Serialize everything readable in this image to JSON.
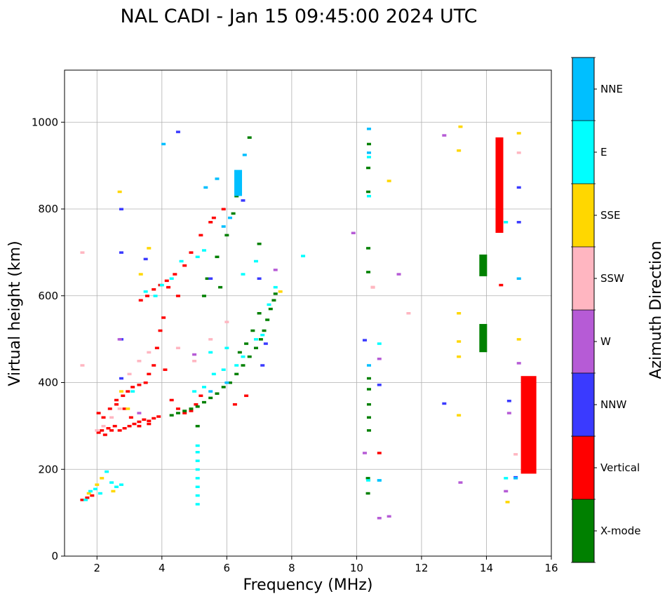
{
  "chart_data": {
    "type": "scatter",
    "title": "NAL CADI - Jan 15 09:45:00 2024 UTC",
    "xlabel": "Frequency (MHz)",
    "ylabel": "Virtual height (km)",
    "xlim": [
      1,
      16
    ],
    "ylim": [
      0,
      1120
    ],
    "xticks": [
      2,
      4,
      6,
      8,
      10,
      12,
      14,
      16
    ],
    "yticks": [
      0,
      200,
      400,
      600,
      800,
      1000
    ],
    "grid": true,
    "colorbar": {
      "title": "Azimuth Direction",
      "categories": [
        {
          "label": "X-mode",
          "color": "#008000"
        },
        {
          "label": "Vertical",
          "color": "#ff0000"
        },
        {
          "label": "NNW",
          "color": "#3a3aff"
        },
        {
          "label": "W",
          "color": "#b65bd6"
        },
        {
          "label": "SSW",
          "color": "#ffb6c1"
        },
        {
          "label": "SSE",
          "color": "#ffd700"
        },
        {
          "label": "E",
          "color": "#00ffff"
        },
        {
          "label": "NNE",
          "color": "#00bfff"
        }
      ]
    },
    "series": [
      {
        "name": "Vertical",
        "points": [
          [
            1.55,
            130
          ],
          [
            1.7,
            135
          ],
          [
            1.85,
            140
          ],
          [
            2.05,
            285
          ],
          [
            2.15,
            290
          ],
          [
            2.25,
            280
          ],
          [
            2.35,
            295
          ],
          [
            2.45,
            290
          ],
          [
            2.55,
            300
          ],
          [
            2.7,
            290
          ],
          [
            2.85,
            295
          ],
          [
            3.0,
            300
          ],
          [
            3.15,
            305
          ],
          [
            3.3,
            310
          ],
          [
            3.45,
            315
          ],
          [
            3.6,
            312
          ],
          [
            3.75,
            318
          ],
          [
            3.9,
            322
          ],
          [
            2.05,
            330
          ],
          [
            2.2,
            320
          ],
          [
            2.4,
            340
          ],
          [
            2.6,
            360
          ],
          [
            2.8,
            370
          ],
          [
            2.95,
            380
          ],
          [
            3.1,
            390
          ],
          [
            3.3,
            395
          ],
          [
            3.5,
            400
          ],
          [
            3.6,
            420
          ],
          [
            3.75,
            440
          ],
          [
            3.85,
            480
          ],
          [
            3.95,
            520
          ],
          [
            4.05,
            550
          ],
          [
            4.1,
            430
          ],
          [
            4.3,
            360
          ],
          [
            4.5,
            340
          ],
          [
            4.7,
            330
          ],
          [
            4.9,
            335
          ],
          [
            5.05,
            350
          ],
          [
            5.2,
            370
          ],
          [
            3.35,
            590
          ],
          [
            3.55,
            600
          ],
          [
            3.75,
            615
          ],
          [
            3.95,
            625
          ],
          [
            4.15,
            635
          ],
          [
            4.4,
            650
          ],
          [
            4.7,
            670
          ],
          [
            4.9,
            700
          ],
          [
            5.2,
            740
          ],
          [
            5.6,
            780
          ],
          [
            5.9,
            800
          ],
          [
            6.25,
            350
          ],
          [
            6.6,
            370
          ],
          [
            2.6,
            350
          ],
          [
            2.85,
            340
          ],
          [
            3.05,
            320
          ],
          [
            3.3,
            300
          ],
          [
            3.6,
            305
          ],
          [
            4.2,
            620
          ],
          [
            4.5,
            600
          ],
          [
            5.5,
            770
          ],
          [
            10.7,
            238
          ],
          [
            10.5,
            620
          ],
          [
            14.45,
            625
          ]
        ]
      },
      {
        "name": "X-mode",
        "points": [
          [
            4.3,
            325
          ],
          [
            4.5,
            330
          ],
          [
            4.7,
            335
          ],
          [
            4.9,
            340
          ],
          [
            5.1,
            345
          ],
          [
            5.3,
            355
          ],
          [
            5.5,
            365
          ],
          [
            5.7,
            375
          ],
          [
            5.9,
            390
          ],
          [
            6.1,
            400
          ],
          [
            6.3,
            420
          ],
          [
            6.5,
            440
          ],
          [
            6.7,
            460
          ],
          [
            6.9,
            480
          ],
          [
            7.05,
            500
          ],
          [
            7.15,
            520
          ],
          [
            7.25,
            545
          ],
          [
            7.35,
            570
          ],
          [
            7.45,
            590
          ],
          [
            7.5,
            605
          ],
          [
            6.4,
            470
          ],
          [
            6.6,
            490
          ],
          [
            6.8,
            520
          ],
          [
            7.0,
            560
          ],
          [
            5.1,
            300
          ],
          [
            5.4,
            640
          ],
          [
            5.7,
            690
          ],
          [
            6.0,
            740
          ],
          [
            6.2,
            790
          ],
          [
            6.3,
            830
          ],
          [
            6.7,
            965
          ],
          [
            7.0,
            720
          ],
          [
            5.3,
            600
          ],
          [
            5.8,
            620
          ],
          [
            10.35,
            145
          ],
          [
            10.35,
            180
          ],
          [
            10.38,
            290
          ],
          [
            10.38,
            320
          ],
          [
            10.38,
            350
          ],
          [
            10.38,
            385
          ],
          [
            10.38,
            410
          ],
          [
            10.36,
            655
          ],
          [
            10.36,
            710
          ],
          [
            10.36,
            840
          ],
          [
            10.36,
            895
          ],
          [
            10.38,
            950
          ],
          [
            13.9,
            480
          ],
          [
            13.9,
            500
          ],
          [
            13.9,
            520
          ],
          [
            13.9,
            655
          ],
          [
            13.9,
            690
          ]
        ]
      },
      {
        "name": "NNW",
        "points": [
          [
            2.75,
            410
          ],
          [
            2.75,
            500
          ],
          [
            2.75,
            800
          ],
          [
            2.75,
            700
          ],
          [
            3.5,
            685
          ],
          [
            4.5,
            978
          ],
          [
            5.5,
            640
          ],
          [
            6.5,
            820
          ],
          [
            7.0,
            640
          ],
          [
            7.2,
            490
          ],
          [
            7.1,
            440
          ],
          [
            10.25,
            498
          ],
          [
            10.7,
            395
          ],
          [
            12.7,
            352
          ],
          [
            14.7,
            358
          ],
          [
            14.9,
            182
          ],
          [
            15.0,
            770
          ],
          [
            15.0,
            850
          ],
          [
            14.45,
            770
          ]
        ]
      },
      {
        "name": "W",
        "points": [
          [
            2.7,
            500
          ],
          [
            3.3,
            330
          ],
          [
            5.0,
            465
          ],
          [
            7.5,
            660
          ],
          [
            9.9,
            745
          ],
          [
            10.25,
            238
          ],
          [
            10.7,
            88
          ],
          [
            11.0,
            92
          ],
          [
            10.7,
            455
          ],
          [
            11.3,
            650
          ],
          [
            12.7,
            970
          ],
          [
            13.2,
            170
          ],
          [
            14.6,
            150
          ],
          [
            14.7,
            330
          ],
          [
            15.0,
            445
          ]
        ]
      },
      {
        "name": "SSW",
        "points": [
          [
            1.55,
            700
          ],
          [
            1.55,
            440
          ],
          [
            2.0,
            290
          ],
          [
            2.2,
            300
          ],
          [
            2.45,
            320
          ],
          [
            2.7,
            340
          ],
          [
            3.0,
            420
          ],
          [
            3.3,
            450
          ],
          [
            3.6,
            470
          ],
          [
            4.5,
            480
          ],
          [
            5.0,
            450
          ],
          [
            5.5,
            500
          ],
          [
            6.0,
            540
          ],
          [
            11.6,
            560
          ],
          [
            14.9,
            235
          ],
          [
            15.0,
            930
          ],
          [
            15.0,
            640
          ],
          [
            10.5,
            620
          ]
        ]
      },
      {
        "name": "SSE",
        "points": [
          [
            1.75,
            145
          ],
          [
            2.0,
            165
          ],
          [
            2.15,
            180
          ],
          [
            2.5,
            150
          ],
          [
            2.7,
            840
          ],
          [
            2.75,
            380
          ],
          [
            2.95,
            340
          ],
          [
            3.35,
            650
          ],
          [
            3.6,
            710
          ],
          [
            11.0,
            865
          ],
          [
            13.15,
            325
          ],
          [
            13.15,
            460
          ],
          [
            13.15,
            495
          ],
          [
            13.15,
            560
          ],
          [
            13.15,
            935
          ],
          [
            13.2,
            990
          ],
          [
            14.65,
            125
          ],
          [
            15.0,
            500
          ],
          [
            15.0,
            975
          ],
          [
            7.65,
            610
          ]
        ]
      },
      {
        "name": "E",
        "points": [
          [
            1.65,
            130
          ],
          [
            1.8,
            150
          ],
          [
            1.95,
            155
          ],
          [
            2.1,
            145
          ],
          [
            2.3,
            195
          ],
          [
            2.45,
            170
          ],
          [
            2.6,
            160
          ],
          [
            2.75,
            165
          ],
          [
            3.1,
            380
          ],
          [
            3.5,
            610
          ],
          [
            3.8,
            600
          ],
          [
            4.0,
            625
          ],
          [
            4.3,
            640
          ],
          [
            4.6,
            680
          ],
          [
            5.1,
            690
          ],
          [
            5.3,
            705
          ],
          [
            5.1,
            120
          ],
          [
            5.1,
            140
          ],
          [
            5.1,
            160
          ],
          [
            5.1,
            180
          ],
          [
            5.1,
            200
          ],
          [
            5.1,
            220
          ],
          [
            5.1,
            240
          ],
          [
            5.1,
            255
          ],
          [
            5.0,
            380
          ],
          [
            5.3,
            390
          ],
          [
            5.6,
            420
          ],
          [
            5.9,
            430
          ],
          [
            6.3,
            440
          ],
          [
            6.5,
            460
          ],
          [
            6.9,
            500
          ],
          [
            7.1,
            510
          ],
          [
            7.3,
            580
          ],
          [
            7.5,
            620
          ],
          [
            5.5,
            470
          ],
          [
            6.0,
            480
          ],
          [
            6.5,
            650
          ],
          [
            6.9,
            680
          ],
          [
            8.35,
            692
          ],
          [
            10.36,
            175
          ],
          [
            10.38,
            830
          ],
          [
            10.38,
            920
          ],
          [
            14.6,
            770
          ],
          [
            14.6,
            180
          ],
          [
            10.7,
            175
          ],
          [
            10.7,
            490
          ]
        ]
      },
      {
        "name": "NNE",
        "points": [
          [
            4.05,
            950
          ],
          [
            5.35,
            850
          ],
          [
            5.7,
            870
          ],
          [
            6.35,
            850
          ],
          [
            6.35,
            870
          ],
          [
            6.35,
            885
          ],
          [
            6.55,
            925
          ],
          [
            6.1,
            780
          ],
          [
            5.9,
            760
          ],
          [
            6.4,
            870
          ],
          [
            6.0,
            400
          ],
          [
            5.5,
            380
          ],
          [
            10.38,
            985
          ],
          [
            10.38,
            930
          ],
          [
            10.38,
            440
          ],
          [
            10.7,
            175
          ],
          [
            14.9,
            180
          ],
          [
            15.0,
            640
          ]
        ]
      }
    ],
    "columns": [
      {
        "name": "Vertical",
        "x": 14.4,
        "y0": 745,
        "y1": 965
      },
      {
        "name": "Vertical",
        "x": 15.3,
        "y0": 190,
        "y1": 415
      },
      {
        "name": "X-mode",
        "x": 13.9,
        "y0": 470,
        "y1": 535
      },
      {
        "name": "X-mode",
        "x": 13.9,
        "y0": 645,
        "y1": 695
      },
      {
        "name": "NNE",
        "x": 6.35,
        "y0": 830,
        "y1": 890
      }
    ]
  }
}
